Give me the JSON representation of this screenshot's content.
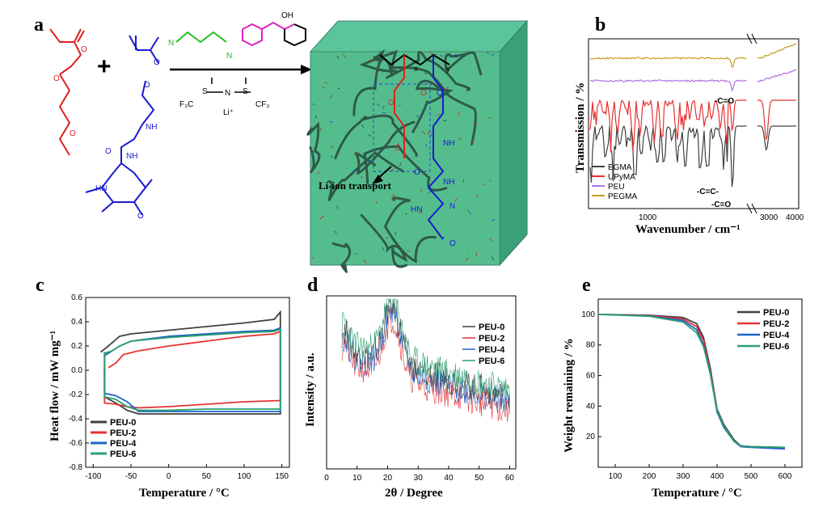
{
  "panels": {
    "a": {
      "label": "a",
      "reagents": {
        "triflyl": "F₃C",
        "triflyl2": "CF₃",
        "li": "Li⁺",
        "n": "N",
        "s": "S",
        "oh": "OH"
      },
      "box_label": "Li-ion transport",
      "atom_labels": {
        "hn": "HN",
        "nh": "NH",
        "n": "N",
        "o": "O",
        "x": "x",
        "y": "y",
        "star": "*"
      }
    },
    "b": {
      "label": "b"
    },
    "c": {
      "label": "c"
    },
    "d": {
      "label": "d"
    },
    "e": {
      "label": "e"
    }
  },
  "chart_data": [
    {
      "id": "b",
      "type": "line",
      "xlabel": "Wavenumber / cm⁻¹",
      "ylabel": "Transmission / %",
      "xticks": [
        "1000",
        "3000",
        "4000"
      ],
      "series": [
        {
          "name": "EGMA",
          "color": "#404040"
        },
        {
          "name": "UPyMA",
          "color": "#e63232"
        },
        {
          "name": "PEU",
          "color": "#b070e0"
        },
        {
          "name": "PEGMA",
          "color": "#c89b1a"
        }
      ],
      "annotations": [
        "-C=O",
        "-C=C-",
        "-C=O"
      ]
    },
    {
      "id": "c",
      "type": "line",
      "xlabel": "Temperature / °C",
      "ylabel": "Heat flow / mW mg⁻¹",
      "xlim": [
        -110,
        160
      ],
      "ylim": [
        -0.8,
        0.6
      ],
      "xticks": [
        -100,
        -50,
        0,
        50,
        100,
        150
      ],
      "yticks": [
        -0.8,
        -0.6,
        -0.4,
        -0.2,
        0.0,
        0.2,
        0.4,
        0.6
      ],
      "legend": "bottom-left",
      "series": [
        {
          "name": "PEU-0",
          "color": "#404040",
          "heat": [
            [
              -90,
              0.15
            ],
            [
              -80,
              0.2
            ],
            [
              -65,
              0.28
            ],
            [
              -50,
              0.3
            ],
            [
              0,
              0.33
            ],
            [
              50,
              0.36
            ],
            [
              100,
              0.39
            ],
            [
              140,
              0.42
            ],
            [
              148,
              0.48
            ]
          ],
          "cool": [
            [
              148,
              -0.36
            ],
            [
              100,
              -0.36
            ],
            [
              50,
              -0.36
            ],
            [
              0,
              -0.36
            ],
            [
              -40,
              -0.36
            ],
            [
              -55,
              -0.33
            ],
            [
              -70,
              -0.27
            ],
            [
              -85,
              -0.22
            ]
          ]
        },
        {
          "name": "PEU-2",
          "color": "#e63232",
          "heat": [
            [
              -80,
              0.02
            ],
            [
              -70,
              0.06
            ],
            [
              -60,
              0.13
            ],
            [
              -40,
              0.16
            ],
            [
              0,
              0.2
            ],
            [
              50,
              0.24
            ],
            [
              100,
              0.28
            ],
            [
              140,
              0.3
            ],
            [
              148,
              0.32
            ]
          ],
          "cool": [
            [
              148,
              -0.25
            ],
            [
              100,
              -0.26
            ],
            [
              50,
              -0.28
            ],
            [
              0,
              -0.3
            ],
            [
              -40,
              -0.31
            ],
            [
              -55,
              -0.3
            ],
            [
              -70,
              -0.28
            ],
            [
              -85,
              -0.27
            ]
          ]
        },
        {
          "name": "PEU-4",
          "color": "#1e64c8",
          "heat": [
            [
              -85,
              0.12
            ],
            [
              -75,
              0.16
            ],
            [
              -65,
              0.2
            ],
            [
              -50,
              0.24
            ],
            [
              0,
              0.28
            ],
            [
              50,
              0.3
            ],
            [
              100,
              0.32
            ],
            [
              140,
              0.33
            ],
            [
              148,
              0.35
            ]
          ],
          "cool": [
            [
              148,
              -0.34
            ],
            [
              100,
              -0.34
            ],
            [
              50,
              -0.34
            ],
            [
              0,
              -0.34
            ],
            [
              -40,
              -0.34
            ],
            [
              -55,
              -0.26
            ],
            [
              -70,
              -0.21
            ],
            [
              -85,
              -0.19
            ]
          ]
        },
        {
          "name": "PEU-6",
          "color": "#2aa070",
          "heat": [
            [
              -85,
              0.14
            ],
            [
              -75,
              0.16
            ],
            [
              -65,
              0.2
            ],
            [
              -50,
              0.24
            ],
            [
              0,
              0.27
            ],
            [
              50,
              0.29
            ],
            [
              100,
              0.31
            ],
            [
              140,
              0.32
            ],
            [
              148,
              0.34
            ]
          ],
          "cool": [
            [
              148,
              -0.32
            ],
            [
              100,
              -0.32
            ],
            [
              50,
              -0.32
            ],
            [
              0,
              -0.33
            ],
            [
              -40,
              -0.33
            ],
            [
              -55,
              -0.3
            ],
            [
              -70,
              -0.24
            ],
            [
              -85,
              -0.22
            ]
          ]
        }
      ]
    },
    {
      "id": "d",
      "type": "line",
      "xlabel": "2θ / Degree",
      "ylabel": "Intensity / a.u.",
      "xlim": [
        0,
        62
      ],
      "xticks": [
        0,
        10,
        20,
        30,
        40,
        50,
        60
      ],
      "legend": "top-right",
      "series": [
        {
          "name": "PEU-0",
          "color": "#404040"
        },
        {
          "name": "PEU-2",
          "color": "#e63232"
        },
        {
          "name": "PEU-4",
          "color": "#1e64c8"
        },
        {
          "name": "PEU-6",
          "color": "#2aa070"
        }
      ]
    },
    {
      "id": "e",
      "type": "line",
      "xlabel": "Temperature / °C",
      "ylabel": "Weight remaining / %",
      "xlim": [
        50,
        650
      ],
      "ylim": [
        0,
        110
      ],
      "xticks": [
        100,
        200,
        300,
        400,
        500,
        600
      ],
      "yticks": [
        20,
        40,
        60,
        80,
        100
      ],
      "legend": "top-right",
      "series": [
        {
          "name": "PEU-0",
          "color": "#404040",
          "points": [
            [
              50,
              100
            ],
            [
              200,
              99.5
            ],
            [
              300,
              98
            ],
            [
              340,
              94
            ],
            [
              360,
              85
            ],
            [
              380,
              65
            ],
            [
              400,
              38
            ],
            [
              420,
              28
            ],
            [
              450,
              18
            ],
            [
              470,
              14
            ],
            [
              500,
              13.5
            ],
            [
              600,
              13
            ]
          ]
        },
        {
          "name": "PEU-2",
          "color": "#e63232",
          "points": [
            [
              50,
              100
            ],
            [
              200,
              99.3
            ],
            [
              300,
              97
            ],
            [
              340,
              92
            ],
            [
              360,
              83
            ],
            [
              380,
              63
            ],
            [
              400,
              37
            ],
            [
              420,
              27
            ],
            [
              450,
              17
            ],
            [
              470,
              14
            ],
            [
              500,
              13.5
            ],
            [
              600,
              12.5
            ]
          ]
        },
        {
          "name": "PEU-4",
          "color": "#1e64c8",
          "points": [
            [
              50,
              100
            ],
            [
              200,
              99
            ],
            [
              300,
              96
            ],
            [
              340,
              90
            ],
            [
              360,
              80
            ],
            [
              380,
              62
            ],
            [
              400,
              36
            ],
            [
              420,
              26
            ],
            [
              450,
              17
            ],
            [
              470,
              13.5
            ],
            [
              500,
              13
            ],
            [
              600,
              12
            ]
          ]
        },
        {
          "name": "PEU-6",
          "color": "#2aa070",
          "points": [
            [
              50,
              100
            ],
            [
              200,
              98.8
            ],
            [
              300,
              95
            ],
            [
              340,
              88
            ],
            [
              360,
              79
            ],
            [
              380,
              61
            ],
            [
              400,
              37
            ],
            [
              420,
              27
            ],
            [
              450,
              17
            ],
            [
              470,
              14
            ],
            [
              500,
              13.5
            ],
            [
              600,
              13
            ]
          ]
        }
      ]
    }
  ]
}
